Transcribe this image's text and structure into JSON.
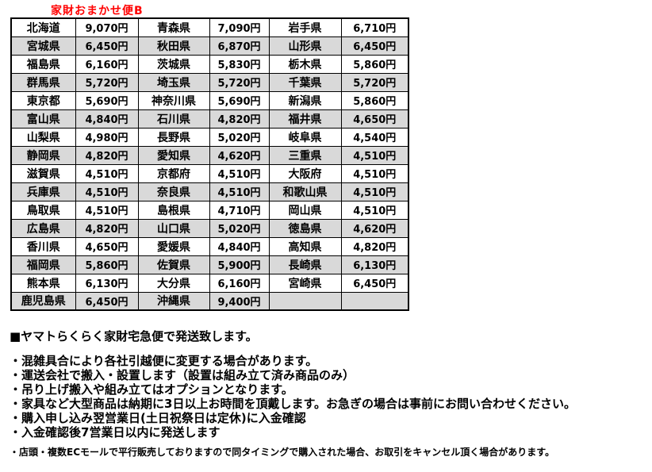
{
  "title": "家財おまかせ便B",
  "table": {
    "rows": [
      {
        "cells": [
          {
            "pref": "北海道",
            "price": "9,070円"
          },
          {
            "pref": "青森県",
            "price": "7,090円"
          },
          {
            "pref": "岩手県",
            "price": "6,710円"
          }
        ]
      },
      {
        "cells": [
          {
            "pref": "宮城県",
            "price": "6,450円"
          },
          {
            "pref": "秋田県",
            "price": "6,870円"
          },
          {
            "pref": "山形県",
            "price": "6,450円"
          }
        ]
      },
      {
        "cells": [
          {
            "pref": "福島県",
            "price": "6,160円"
          },
          {
            "pref": "茨城県",
            "price": "5,830円"
          },
          {
            "pref": "栃木県",
            "price": "5,860円"
          }
        ]
      },
      {
        "cells": [
          {
            "pref": "群馬県",
            "price": "5,720円"
          },
          {
            "pref": "埼玉県",
            "price": "5,720円"
          },
          {
            "pref": "千葉県",
            "price": "5,720円"
          }
        ]
      },
      {
        "cells": [
          {
            "pref": "東京都",
            "price": "5,690円"
          },
          {
            "pref": "神奈川県",
            "price": "5,690円"
          },
          {
            "pref": "新潟県",
            "price": "5,860円"
          }
        ]
      },
      {
        "cells": [
          {
            "pref": "富山県",
            "price": "4,840円"
          },
          {
            "pref": "石川県",
            "price": "4,820円"
          },
          {
            "pref": "福井県",
            "price": "4,650円"
          }
        ]
      },
      {
        "cells": [
          {
            "pref": "山梨県",
            "price": "4,980円"
          },
          {
            "pref": "長野県",
            "price": "5,020円"
          },
          {
            "pref": "岐阜県",
            "price": "4,540円"
          }
        ]
      },
      {
        "cells": [
          {
            "pref": "静岡県",
            "price": "4,820円"
          },
          {
            "pref": "愛知県",
            "price": "4,620円"
          },
          {
            "pref": "三重県",
            "price": "4,510円"
          }
        ]
      },
      {
        "cells": [
          {
            "pref": "滋賀県",
            "price": "4,510円"
          },
          {
            "pref": "京都府",
            "price": "4,510円"
          },
          {
            "pref": "大阪府",
            "price": "4,510円"
          }
        ]
      },
      {
        "cells": [
          {
            "pref": "兵庫県",
            "price": "4,510円"
          },
          {
            "pref": "奈良県",
            "price": "4,510円"
          },
          {
            "pref": "和歌山県",
            "price": "4,510円"
          }
        ]
      },
      {
        "cells": [
          {
            "pref": "鳥取県",
            "price": "4,510円"
          },
          {
            "pref": "島根県",
            "price": "4,710円"
          },
          {
            "pref": "岡山県",
            "price": "4,510円"
          }
        ]
      },
      {
        "cells": [
          {
            "pref": "広島県",
            "price": "4,820円"
          },
          {
            "pref": "山口県",
            "price": "5,020円"
          },
          {
            "pref": "徳島県",
            "price": "4,620円"
          }
        ]
      },
      {
        "cells": [
          {
            "pref": "香川県",
            "price": "4,650円"
          },
          {
            "pref": "愛媛県",
            "price": "4,840円"
          },
          {
            "pref": "高知県",
            "price": "4,820円"
          }
        ]
      },
      {
        "cells": [
          {
            "pref": "福岡県",
            "price": "5,860円"
          },
          {
            "pref": "佐賀県",
            "price": "5,900円"
          },
          {
            "pref": "長崎県",
            "price": "6,130円"
          }
        ]
      },
      {
        "cells": [
          {
            "pref": "熊本県",
            "price": "6,130円"
          },
          {
            "pref": "大分県",
            "price": "6,160円"
          },
          {
            "pref": "宮崎県",
            "price": "6,450円"
          }
        ]
      },
      {
        "cells": [
          {
            "pref": "鹿児島県",
            "price": "6,450円"
          },
          {
            "pref": "沖縄県",
            "price": "9,400円"
          },
          {
            "pref": "",
            "price": ""
          }
        ]
      }
    ]
  },
  "notes": {
    "heading": "■ヤマトらくらく家財宅急便で発送致します。",
    "bullets": [
      "・混雑具合により各社引越便に変更する場合があります。",
      "・運送会社で搬入・設置します（設置は組み立て済み商品のみ）",
      "・吊り上げ搬入や組み立てはオプションとなります。",
      "・家具など大型商品は納期に3日以上お時間を頂戴します。お急ぎの場合は事前にお問い合わせください。",
      "・購入申し込み翌営業日(土日祝祭日は定休)に入金確認",
      "・入金確認後7営業日以内に発送します"
    ],
    "fine_print": "・店頭・複数ECモールで平行販売しておりますので同タイミングで購入された場合、お取引をキャンセル頂く場合があります。"
  },
  "colors": {
    "title_red": "#ff0000",
    "row_alt_gray": "#d9d9d9",
    "border_black": "#000000"
  }
}
